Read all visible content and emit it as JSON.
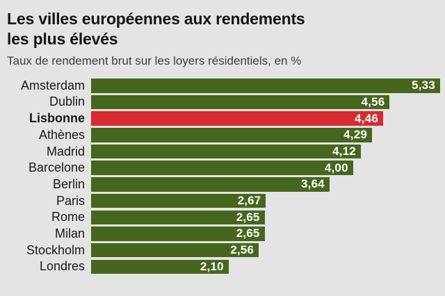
{
  "header": {
    "title_line1": "Les villes européennes aux rendements",
    "title_line2": "les plus élevés",
    "subtitle": "Taux de rendement brut sur les loyers résidentiels, en %"
  },
  "chart_data": {
    "type": "bar",
    "orientation": "horizontal",
    "title": "Les villes européennes aux rendements les plus élevés",
    "subtitle": "Taux de rendement brut sur les loyers résidentiels, en %",
    "categories": [
      "Amsterdam",
      "Dublin",
      "Lisbonne",
      "Athènes",
      "Madrid",
      "Barcelone",
      "Berlin",
      "Paris",
      "Rome",
      "Milan",
      "Stockholm",
      "Londres"
    ],
    "values": [
      5.33,
      4.56,
      4.46,
      4.29,
      4.12,
      4.0,
      3.64,
      2.67,
      2.65,
      2.65,
      2.56,
      2.1
    ],
    "value_labels": [
      "5,33",
      "4,56",
      "4,46",
      "4,29",
      "4,12",
      "4,00",
      "3,64",
      "2,67",
      "2,65",
      "2,65",
      "2,56",
      "2,10"
    ],
    "highlight_index": 2,
    "highlight_category": "Lisbonne",
    "xlim": [
      0,
      5.33
    ],
    "xlabel": "",
    "ylabel": "",
    "grid": false,
    "legend": "none",
    "value_labels_position": "inside-end"
  },
  "colors": {
    "background": "#e4e4e4",
    "bar": "#47661d",
    "bar_highlight": "#d62b31",
    "value_label": "#ffffff",
    "title": "#141414",
    "subtitle": "#3d3d3d",
    "category_label": "#1a1a1a"
  }
}
